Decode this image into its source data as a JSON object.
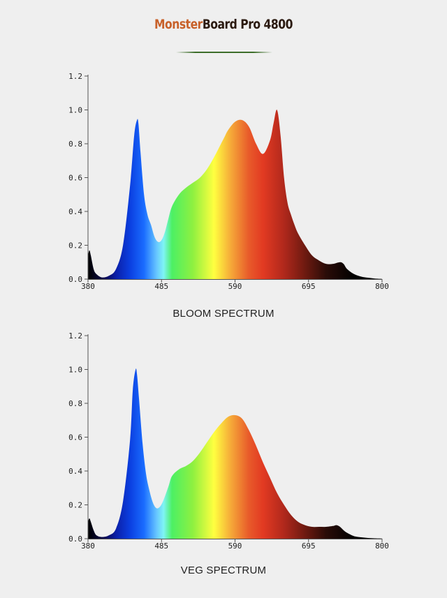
{
  "brand": {
    "part1": "Monster",
    "part2": "Board Pro 4800"
  },
  "chart_data": [
    {
      "type": "area",
      "title": "BLOOM SPECTRUM",
      "xlabel": "",
      "ylabel": "",
      "xlim": [
        380,
        800
      ],
      "ylim": [
        0,
        1.2
      ],
      "x_ticks": [
        "380",
        "485",
        "590",
        "695",
        "800"
      ],
      "y_ticks": [
        "0.0",
        "0.2",
        "0.4",
        "0.6",
        "0.8",
        "1.0",
        "1.2"
      ],
      "grid": false,
      "legend": "none",
      "x": [
        380,
        382,
        384,
        388,
        392,
        400,
        410,
        420,
        430,
        440,
        446,
        450,
        452,
        455,
        460,
        465,
        470,
        475,
        480,
        485,
        490,
        495,
        500,
        510,
        520,
        530,
        540,
        550,
        560,
        570,
        575,
        580,
        590,
        600,
        610,
        620,
        630,
        640,
        645,
        650,
        655,
        660,
        665,
        670,
        675,
        680,
        690,
        700,
        710,
        720,
        730,
        740,
        745,
        750,
        760,
        770,
        780,
        790,
        800
      ],
      "y": [
        0.14,
        0.17,
        0.14,
        0.06,
        0.03,
        0.01,
        0.02,
        0.06,
        0.2,
        0.55,
        0.85,
        0.94,
        0.92,
        0.75,
        0.5,
        0.38,
        0.32,
        0.25,
        0.22,
        0.23,
        0.28,
        0.36,
        0.43,
        0.5,
        0.54,
        0.57,
        0.6,
        0.65,
        0.72,
        0.8,
        0.84,
        0.88,
        0.93,
        0.94,
        0.9,
        0.8,
        0.74,
        0.82,
        0.92,
        1.0,
        0.85,
        0.6,
        0.45,
        0.38,
        0.32,
        0.27,
        0.2,
        0.14,
        0.11,
        0.09,
        0.09,
        0.1,
        0.09,
        0.06,
        0.03,
        0.015,
        0.008,
        0.003,
        0.001
      ]
    },
    {
      "type": "area",
      "title": "VEG SPECTRUM",
      "xlabel": "",
      "ylabel": "",
      "xlim": [
        380,
        800
      ],
      "ylim": [
        0,
        1.2
      ],
      "x_ticks": [
        "380",
        "485",
        "590",
        "695",
        "800"
      ],
      "y_ticks": [
        "0.0",
        "0.2",
        "0.4",
        "0.6",
        "0.8",
        "1.0",
        "1.2"
      ],
      "grid": false,
      "legend": "none",
      "x": [
        380,
        382,
        384,
        388,
        392,
        400,
        410,
        420,
        430,
        440,
        444,
        448,
        450,
        453,
        458,
        463,
        468,
        473,
        478,
        483,
        488,
        495,
        500,
        510,
        520,
        530,
        540,
        550,
        560,
        570,
        580,
        590,
        600,
        610,
        620,
        630,
        640,
        650,
        660,
        670,
        680,
        690,
        700,
        710,
        720,
        730,
        735,
        740,
        745,
        750,
        760,
        770,
        780,
        790,
        800
      ],
      "y": [
        0.1,
        0.12,
        0.1,
        0.05,
        0.02,
        0.01,
        0.02,
        0.06,
        0.22,
        0.58,
        0.88,
        1.0,
        0.97,
        0.82,
        0.56,
        0.38,
        0.28,
        0.21,
        0.18,
        0.19,
        0.23,
        0.31,
        0.37,
        0.41,
        0.43,
        0.46,
        0.51,
        0.57,
        0.63,
        0.68,
        0.72,
        0.73,
        0.71,
        0.64,
        0.55,
        0.45,
        0.36,
        0.27,
        0.2,
        0.14,
        0.1,
        0.08,
        0.07,
        0.07,
        0.07,
        0.075,
        0.08,
        0.07,
        0.05,
        0.035,
        0.015,
        0.008,
        0.004,
        0.002,
        0.001
      ]
    }
  ]
}
